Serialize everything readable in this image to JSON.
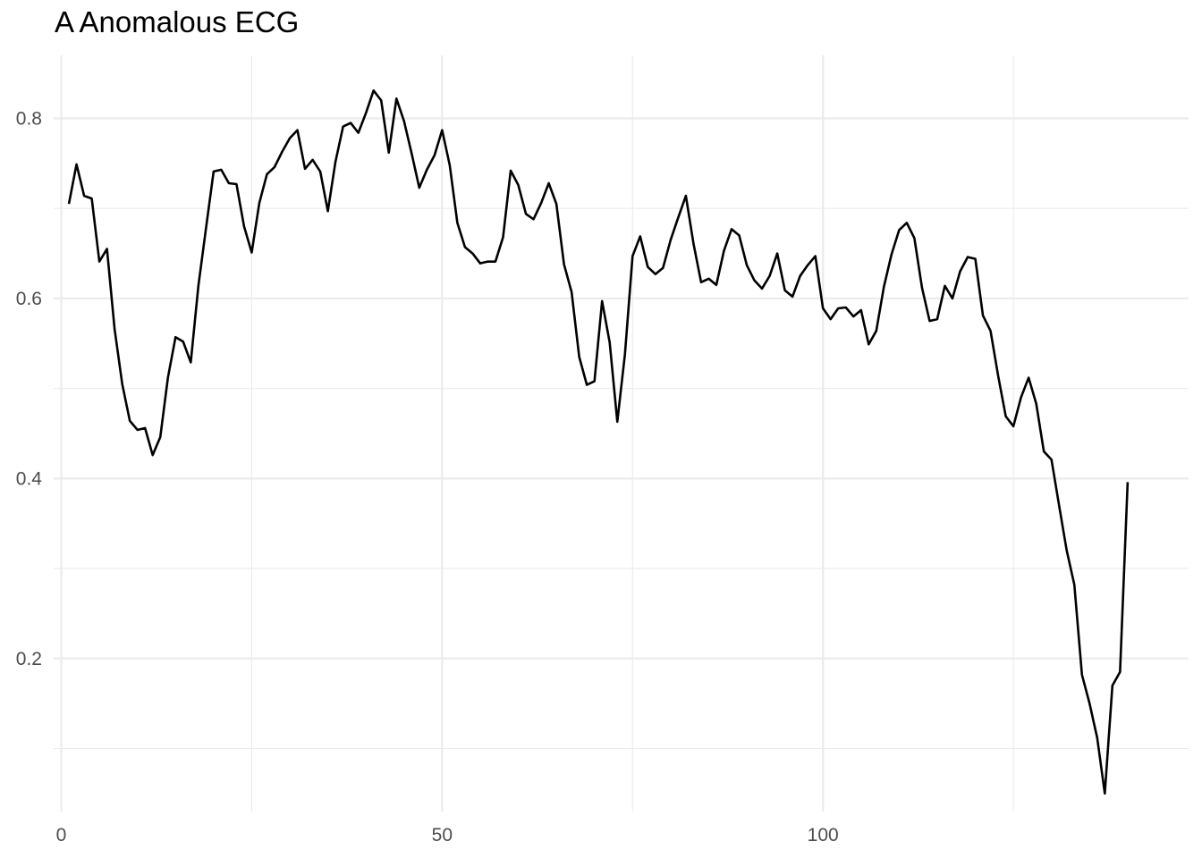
{
  "chart_data": {
    "type": "line",
    "title": "A Anomalous ECG",
    "xlabel": "",
    "ylabel": "",
    "xlim": [
      -1,
      148
    ],
    "ylim": [
      0.03,
      0.87
    ],
    "x_ticks": [
      0,
      50,
      100
    ],
    "x_tick_labels": [
      "0",
      "50",
      "100"
    ],
    "x_minor_ticks": [
      25,
      75,
      125
    ],
    "y_ticks": [
      0.2,
      0.4,
      0.6,
      0.8
    ],
    "y_tick_labels": [
      "0.2",
      "0.4",
      "0.6",
      "0.8"
    ],
    "y_minor_ticks": [
      0.1,
      0.3,
      0.5,
      0.7
    ],
    "grid": true,
    "legend": "none",
    "line_color": "#000000",
    "grid_color": "#ebebeb",
    "series": [
      {
        "x_start": 1,
        "x_step": 1,
        "values": [
          0.705,
          0.749,
          0.714,
          0.711,
          0.641,
          0.655,
          0.566,
          0.505,
          0.464,
          0.454,
          0.456,
          0.426,
          0.446,
          0.512,
          0.557,
          0.552,
          0.529,
          0.614,
          0.678,
          0.741,
          0.743,
          0.728,
          0.727,
          0.68,
          0.651,
          0.706,
          0.738,
          0.746,
          0.763,
          0.778,
          0.787,
          0.744,
          0.754,
          0.741,
          0.697,
          0.752,
          0.791,
          0.795,
          0.784,
          0.806,
          0.831,
          0.82,
          0.762,
          0.822,
          0.797,
          0.761,
          0.723,
          0.743,
          0.759,
          0.787,
          0.748,
          0.684,
          0.657,
          0.65,
          0.639,
          0.641,
          0.641,
          0.668,
          0.742,
          0.726,
          0.694,
          0.688,
          0.706,
          0.728,
          0.705,
          0.638,
          0.607,
          0.535,
          0.504,
          0.508,
          0.597,
          0.551,
          0.463,
          0.538,
          0.647,
          0.669,
          0.635,
          0.627,
          0.634,
          0.665,
          0.69,
          0.714,
          0.661,
          0.618,
          0.622,
          0.615,
          0.653,
          0.677,
          0.67,
          0.637,
          0.62,
          0.611,
          0.625,
          0.65,
          0.609,
          0.602,
          0.625,
          0.637,
          0.647,
          0.589,
          0.577,
          0.589,
          0.59,
          0.58,
          0.587,
          0.549,
          0.564,
          0.613,
          0.649,
          0.676,
          0.684,
          0.667,
          0.612,
          0.575,
          0.577,
          0.614,
          0.6,
          0.63,
          0.646,
          0.644,
          0.581,
          0.564,
          0.514,
          0.469,
          0.458,
          0.49,
          0.512,
          0.483,
          0.43,
          0.421,
          0.37,
          0.32,
          0.282,
          0.182,
          0.15,
          0.112,
          0.05,
          0.17,
          0.185,
          0.396
        ]
      }
    ]
  }
}
